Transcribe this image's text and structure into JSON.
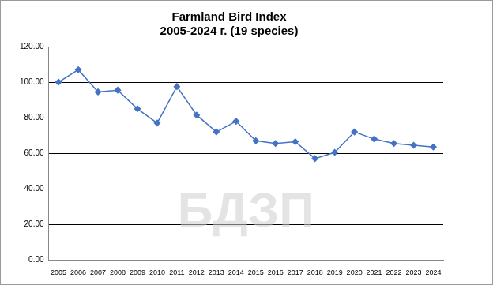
{
  "chart_data": {
    "type": "line",
    "title": "Farmland Bird Index",
    "subtitle": "2005-2024 г. (19 species)",
    "annotations": [
      "БДЗП"
    ],
    "categories": [
      "2005",
      "2006",
      "2007",
      "2008",
      "2009",
      "2010",
      "2011",
      "2012",
      "2013",
      "2014",
      "2015",
      "2016",
      "2017",
      "2018",
      "2019",
      "2020",
      "2021",
      "2022",
      "2023",
      "2024"
    ],
    "values": [
      100,
      107,
      94.5,
      95.5,
      85,
      77,
      97.5,
      81.5,
      72,
      78,
      67,
      65.5,
      66.5,
      57,
      60.5,
      72,
      68,
      65.5,
      64.5,
      63.5
    ],
    "color": "#4472c4",
    "marker": "diamond",
    "ylim": [
      0,
      120
    ],
    "yticks": [
      {
        "value": 0,
        "label": "0.00"
      },
      {
        "value": 20,
        "label": "20.00"
      },
      {
        "value": 40,
        "label": "40.00"
      },
      {
        "value": 60,
        "label": "60.00"
      },
      {
        "value": 80,
        "label": "80.00"
      },
      {
        "value": 100,
        "label": "100.00"
      },
      {
        "value": 120,
        "label": "120.00"
      }
    ],
    "grid": true
  }
}
